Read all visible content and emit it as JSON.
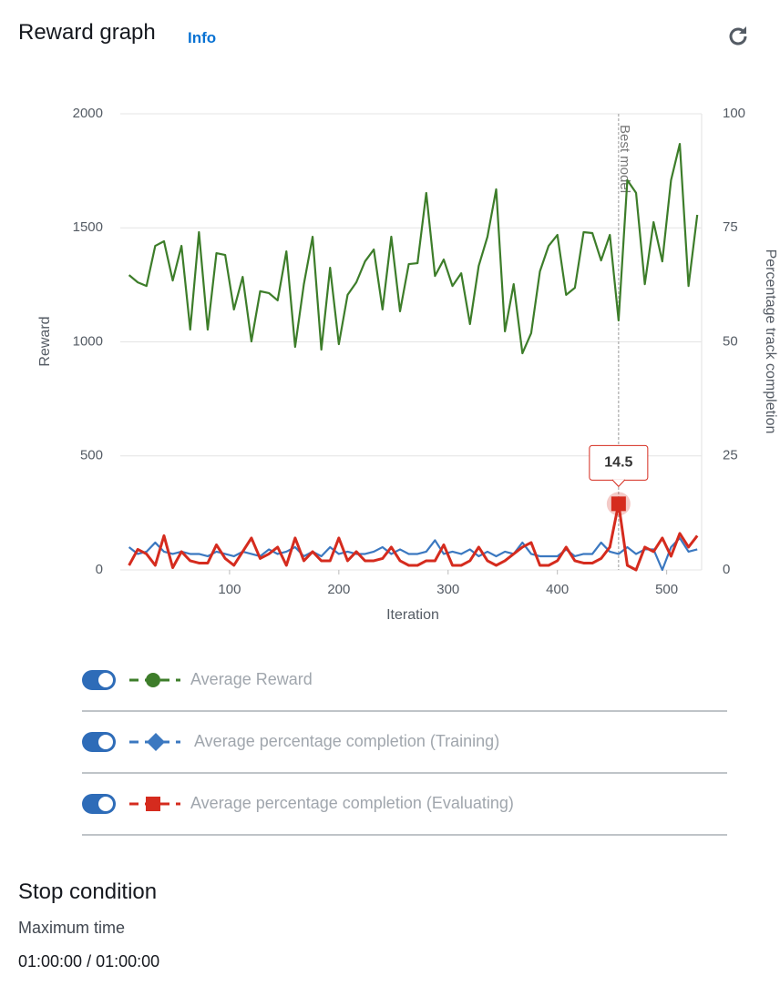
{
  "header": {
    "title": "Reward graph",
    "info": "Info"
  },
  "chart_data": {
    "type": "line",
    "x_label": "Iteration",
    "y_label": "Reward",
    "y2_label": "Percentage track completion",
    "x": [
      8,
      16,
      24,
      32,
      40,
      48,
      56,
      64,
      72,
      80,
      88,
      96,
      104,
      112,
      120,
      128,
      136,
      144,
      152,
      160,
      168,
      176,
      184,
      192,
      200,
      208,
      216,
      224,
      232,
      240,
      248,
      256,
      264,
      272,
      280,
      288,
      296,
      304,
      312,
      320,
      328,
      336,
      344,
      352,
      360,
      368,
      376,
      384,
      392,
      400,
      408,
      416,
      424,
      432,
      440,
      448,
      456,
      464,
      472,
      480,
      488,
      496,
      504,
      512,
      520,
      528
    ],
    "xlim": [
      0,
      532
    ],
    "xticks": [
      100,
      200,
      300,
      400,
      500
    ],
    "ylim": [
      0,
      2000
    ],
    "yticks": [
      0,
      500,
      1000,
      1500,
      2000
    ],
    "y2lim": [
      0,
      100
    ],
    "y2ticks": [
      0,
      25,
      50,
      75,
      100
    ],
    "grid": true,
    "series": [
      {
        "name": "Average Reward",
        "color": "#3d7d2a",
        "marker": "circle",
        "values": [
          1293,
          1261,
          1245,
          1421,
          1441,
          1269,
          1421,
          1054,
          1481,
          1054,
          1389,
          1381,
          1142,
          1285,
          1002,
          1222,
          1214,
          1182,
          1397,
          978,
          1253,
          1461,
          966,
          1325,
          990,
          1206,
          1261,
          1353,
          1405,
          1142,
          1461,
          1134,
          1341,
          1345,
          1653,
          1289,
          1361,
          1245,
          1301,
          1078,
          1333,
          1461,
          1669,
          1046,
          1253,
          950,
          1038,
          1309,
          1421,
          1469,
          1206,
          1237,
          1481,
          1477,
          1357,
          1469,
          1094,
          1709,
          1653,
          1253,
          1525,
          1353,
          1709,
          1868,
          1245,
          1557
        ]
      },
      {
        "name": "Average percentage completion (Training)",
        "color": "#3b78c0",
        "marker": "diamond",
        "axis": "y2",
        "values": [
          5,
          3.5,
          4,
          6,
          4,
          3.5,
          4,
          3.5,
          3.5,
          3,
          4,
          3.5,
          3,
          4,
          3.5,
          3,
          4.5,
          3.5,
          4,
          5,
          3,
          4,
          3,
          5,
          3.5,
          4,
          3.5,
          3.5,
          4,
          5,
          3.5,
          4.5,
          3.5,
          3.5,
          4,
          6.5,
          3.5,
          4,
          3.5,
          4.5,
          3,
          4,
          3,
          4,
          3.5,
          6,
          3.5,
          3,
          3,
          3,
          4.5,
          3,
          3.5,
          3.5,
          6,
          4,
          3.5,
          5,
          3.5,
          4.5,
          4.5,
          0,
          5,
          7,
          4,
          4.5
        ]
      },
      {
        "name": "Average percentage completion (Evaluating)",
        "color": "#d52b1e",
        "marker": "square",
        "axis": "y2",
        "values": [
          1,
          4.5,
          3.5,
          1,
          7.5,
          0.5,
          4,
          2,
          1.5,
          1.5,
          5.5,
          2.5,
          1,
          4,
          7,
          2.5,
          3.5,
          5,
          1,
          7,
          2,
          4,
          2,
          2,
          7,
          2,
          4,
          2,
          2,
          2.5,
          5,
          2,
          1,
          1,
          2,
          2,
          5.5,
          1,
          1,
          2,
          5,
          2,
          1,
          2,
          3.5,
          5,
          6,
          1,
          1,
          2,
          5,
          2,
          1.5,
          1.5,
          2.5,
          5,
          14.5,
          1,
          0,
          5,
          4,
          7,
          3,
          8,
          5,
          7.5
        ]
      }
    ],
    "annotations": [
      {
        "text": "Best model",
        "x": 456
      }
    ]
  },
  "stop_condition": {
    "title": "Stop condition",
    "label": "Maximum time",
    "value": "01:00:00 / 01:00:00"
  }
}
